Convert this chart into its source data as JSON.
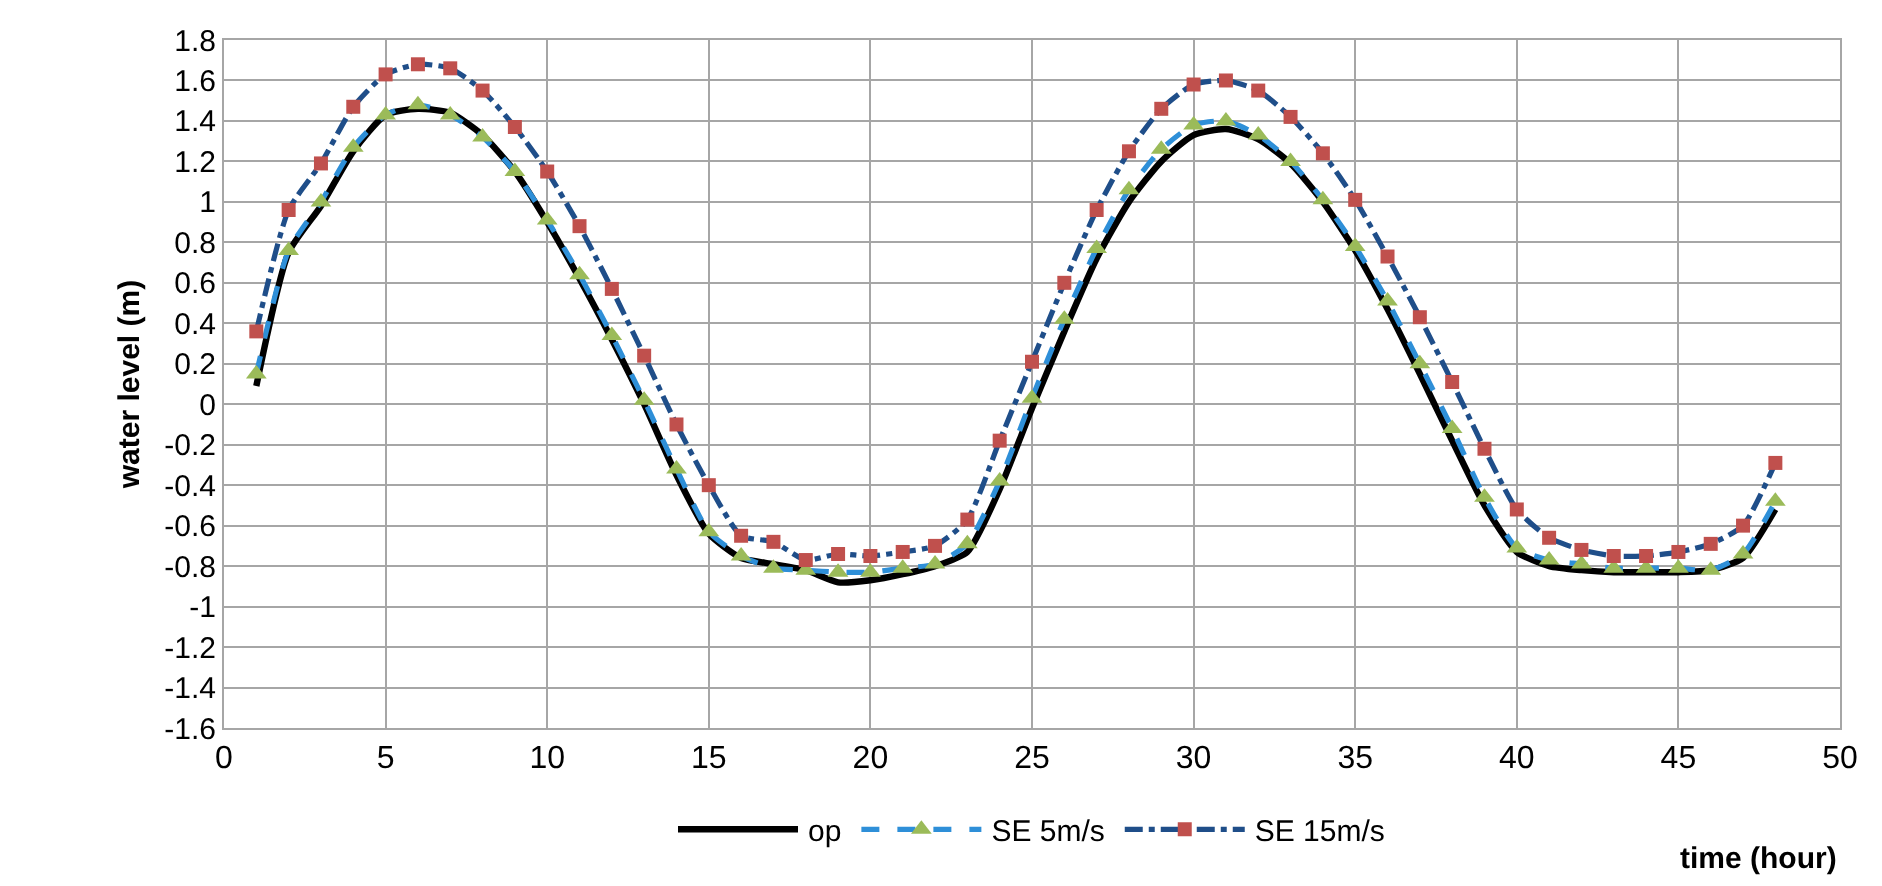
{
  "chart_data": {
    "type": "line",
    "xlabel": "time (hour)",
    "ylabel": "water level (m)",
    "x": [
      1,
      2,
      3,
      4,
      5,
      6,
      7,
      8,
      9,
      10,
      11,
      12,
      13,
      14,
      15,
      16,
      17,
      18,
      19,
      20,
      21,
      22,
      23,
      24,
      25,
      26,
      27,
      28,
      29,
      30,
      31,
      32,
      33,
      34,
      35,
      36,
      37,
      38,
      39,
      40,
      41,
      42,
      43,
      44,
      45,
      46,
      47,
      48
    ],
    "series": [
      {
        "name": "op",
        "color": "#000000",
        "marker": "none",
        "line_style": "solid",
        "values": [
          0.09,
          0.75,
          0.98,
          1.25,
          1.43,
          1.46,
          1.44,
          1.33,
          1.15,
          0.9,
          0.62,
          0.32,
          0.0,
          -0.35,
          -0.64,
          -0.76,
          -0.79,
          -0.82,
          -0.88,
          -0.87,
          -0.84,
          -0.8,
          -0.73,
          -0.42,
          -0.02,
          0.36,
          0.72,
          1.0,
          1.2,
          1.33,
          1.36,
          1.31,
          1.19,
          1.0,
          0.76,
          0.47,
          0.15,
          -0.18,
          -0.5,
          -0.73,
          -0.8,
          -0.82,
          -0.83,
          -0.83,
          -0.83,
          -0.82,
          -0.76,
          -0.52
        ]
      },
      {
        "name": "SE 5m/s",
        "color": "#2e8fd8",
        "marker": "triangle",
        "line_style": "dashed",
        "colors": [
          "#9bbb59",
          "#9bbb59",
          "#9bbb59",
          "#9bbb59",
          "#9bbb59",
          "#9bbb59",
          "#9bbb59",
          "#9bbb59",
          "#9bbb59",
          "#9bbb59",
          "#9bbb59",
          "#9bbb59",
          "#9bbb59",
          "#9bbb59",
          "#9bbb59",
          "#9bbb59",
          "#9bbb59",
          "#9bbb59",
          "#9bbb59",
          "#9bbb59",
          "#9bbb59",
          "#9bbb59",
          "#9bbb59",
          "#9bbb59",
          "#9bbb59",
          "#9bbb59",
          "#9bbb59",
          "#9bbb59",
          "#9bbb59",
          "#9bbb59",
          "#9bbb59",
          "#9bbb59",
          "#9bbb59",
          "#9bbb59",
          "#9bbb59",
          "#9bbb59",
          "#9bbb59",
          "#9bbb59",
          "#9bbb59",
          "#9bbb59",
          "#9bbb59",
          "#9bbb59",
          "#9bbb59",
          "#9bbb59",
          "#9bbb59",
          "#9bbb59",
          "#9bbb59",
          "#9bbb59"
        ],
        "values": [
          0.15,
          0.76,
          1.0,
          1.27,
          1.43,
          1.48,
          1.43,
          1.32,
          1.15,
          0.91,
          0.64,
          0.34,
          0.02,
          -0.32,
          -0.63,
          -0.75,
          -0.81,
          -0.82,
          -0.83,
          -0.83,
          -0.81,
          -0.79,
          -0.69,
          -0.38,
          0.03,
          0.42,
          0.77,
          1.06,
          1.26,
          1.38,
          1.4,
          1.33,
          1.2,
          1.01,
          0.78,
          0.51,
          0.2,
          -0.12,
          -0.46,
          -0.71,
          -0.77,
          -0.79,
          -0.81,
          -0.81,
          -0.81,
          -0.82,
          -0.74,
          -0.48
        ]
      },
      {
        "name": "SE 15m/s",
        "color": "#1f4e89",
        "marker": "square",
        "line_style": "dashdot",
        "colors": [
          "#c0504d",
          "#c0504d",
          "#c0504d",
          "#c0504d",
          "#c0504d",
          "#c0504d",
          "#c0504d",
          "#c0504d",
          "#c0504d",
          "#c0504d",
          "#c0504d",
          "#c0504d",
          "#c0504d",
          "#c0504d",
          "#c0504d",
          "#c0504d",
          "#c0504d",
          "#c0504d",
          "#c0504d",
          "#c0504d",
          "#c0504d",
          "#c0504d",
          "#c0504d",
          "#c0504d",
          "#c0504d",
          "#c0504d",
          "#c0504d",
          "#c0504d",
          "#c0504d",
          "#c0504d",
          "#c0504d",
          "#c0504d",
          "#c0504d",
          "#c0504d",
          "#c0504d",
          "#c0504d",
          "#c0504d",
          "#c0504d",
          "#c0504d",
          "#c0504d",
          "#c0504d",
          "#c0504d",
          "#c0504d",
          "#c0504d",
          "#c0504d",
          "#c0504d",
          "#c0504d",
          "#c0504d"
        ],
        "values": [
          0.36,
          0.96,
          1.19,
          1.47,
          1.63,
          1.68,
          1.66,
          1.55,
          1.37,
          1.15,
          0.88,
          0.57,
          0.24,
          -0.1,
          -0.4,
          -0.65,
          -0.68,
          -0.77,
          -0.74,
          -0.75,
          -0.73,
          -0.7,
          -0.57,
          -0.18,
          0.21,
          0.6,
          0.96,
          1.25,
          1.46,
          1.58,
          1.6,
          1.55,
          1.42,
          1.24,
          1.01,
          0.73,
          0.43,
          0.11,
          -0.22,
          -0.52,
          -0.66,
          -0.72,
          -0.75,
          -0.75,
          -0.73,
          -0.69,
          -0.6,
          -0.29
        ]
      }
    ],
    "xlim": [
      0,
      50
    ],
    "xticks": [
      0,
      5,
      10,
      15,
      20,
      25,
      30,
      35,
      40,
      45,
      50
    ],
    "ylim": [
      -1.6,
      1.8
    ],
    "yticks": [
      -1.6,
      -1.4,
      -1.2,
      -1,
      -0.8,
      -0.6,
      -0.4,
      -0.2,
      0,
      0.2,
      0.4,
      0.6,
      0.8,
      1,
      1.2,
      1.4,
      1.6,
      1.8
    ],
    "grid": true,
    "legend": "bottom"
  }
}
